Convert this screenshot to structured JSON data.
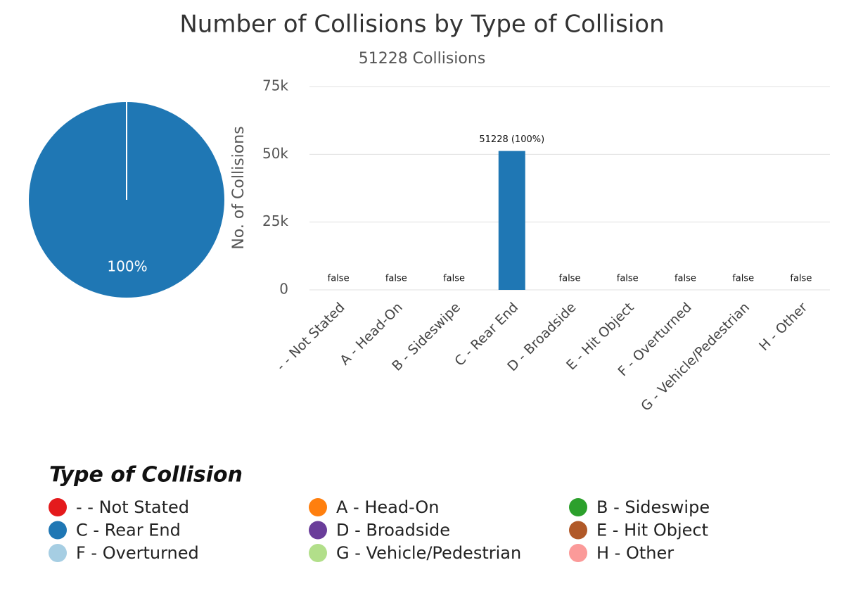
{
  "chart_data": [
    {
      "type": "pie",
      "values": [
        100
      ],
      "value_labels": [
        "100%"
      ],
      "colors": [
        "#1f77b4"
      ]
    },
    {
      "type": "bar",
      "title": "Number of Collisions by Type of Collision",
      "subtitle": "51228 Collisions",
      "y_label": "No. of Collisions",
      "categories": [
        "- - Not Stated",
        "A - Head-On",
        "B - Sideswipe",
        "C - Rear End",
        "D - Broadside",
        "E - Hit Object",
        "F - Overturned",
        "G - Vehicle/Pedestrian",
        "H - Other"
      ],
      "values": [
        null,
        null,
        null,
        51228,
        null,
        null,
        null,
        null,
        null
      ],
      "value_labels": [
        "false",
        "false",
        "false",
        "51228 (100%)",
        "false",
        "false",
        "false",
        "false",
        "false"
      ],
      "ylim": [
        0,
        75000
      ],
      "yticks": [
        0,
        {
          "value": 25000,
          "label": "25k"
        },
        {
          "value": 50000,
          "label": "50k"
        },
        {
          "value": 75000,
          "label": "75k"
        }
      ],
      "grid": true
    }
  ],
  "legend": {
    "title": "Type of Collision",
    "items": [
      {
        "name": "- - Not Stated",
        "color": "#e41a1c"
      },
      {
        "name": "A - Head-On",
        "color": "#ff7f0e"
      },
      {
        "name": "B - Sideswipe",
        "color": "#2ca02c"
      },
      {
        "name": "C - Rear End",
        "color": "#1f77b4"
      },
      {
        "name": "D - Broadside",
        "color": "#6a3d9a"
      },
      {
        "name": "E - Hit Object",
        "color": "#b15928"
      },
      {
        "name": "F - Overturned",
        "color": "#a6cee3"
      },
      {
        "name": "G - Vehicle/Pedestrian",
        "color": "#b2df8a"
      },
      {
        "name": "H - Other",
        "color": "#fb9a99"
      }
    ]
  }
}
